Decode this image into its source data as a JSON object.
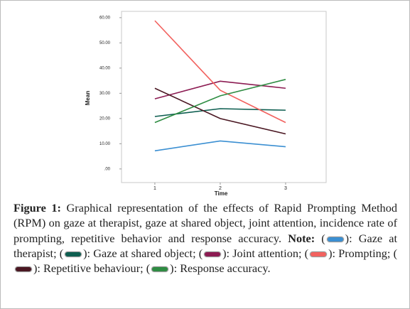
{
  "chart_data": {
    "type": "line",
    "xlabel": "Time",
    "ylabel": "Mean",
    "x": [
      1,
      2,
      3
    ],
    "xlim": [
      0.49,
      3.62
    ],
    "xticks": [
      1,
      2,
      3
    ],
    "ylim": [
      -5.4,
      62.5
    ],
    "yticks": [
      {
        "value": 0,
        "label": ".00"
      },
      {
        "value": 10,
        "label": "10.00"
      },
      {
        "value": 20,
        "label": "20.00"
      },
      {
        "value": 30,
        "label": "30.00"
      },
      {
        "value": 40,
        "label": "40.00"
      },
      {
        "value": 50,
        "label": "50.00"
      },
      {
        "value": 60,
        "label": "60.00"
      }
    ],
    "series": [
      {
        "name": "Gaze at therapist",
        "color": "#3b8fd2",
        "values": [
          7.2,
          11.1,
          8.8
        ]
      },
      {
        "name": "Gaze at shared object",
        "color": "#0d5e50",
        "values": [
          20.8,
          23.9,
          23.3
        ]
      },
      {
        "name": "Joint attention",
        "color": "#8c1b52",
        "values": [
          27.8,
          34.8,
          32.0
        ]
      },
      {
        "name": "Prompting",
        "color": "#f2625f",
        "values": [
          58.8,
          31.2,
          18.4
        ]
      },
      {
        "name": "Repetitive behaviour",
        "color": "#4a1722",
        "values": [
          32.0,
          20.0,
          13.9
        ]
      },
      {
        "name": "Response accuracy",
        "color": "#2e8c42",
        "values": [
          18.4,
          29.0,
          35.5
        ]
      }
    ],
    "caption": {
      "label": "Figure 1:",
      "text": "Graphical representation of the effects of Rapid Prompting Method (RPM) on gaze at therapist, gaze at shared object, joint attention, incidence rate of prompting, repetitive behavior and response accuracy.",
      "note_label": "Note:",
      "open": "(",
      "close": "):",
      "separator": ";",
      "end": "."
    }
  }
}
